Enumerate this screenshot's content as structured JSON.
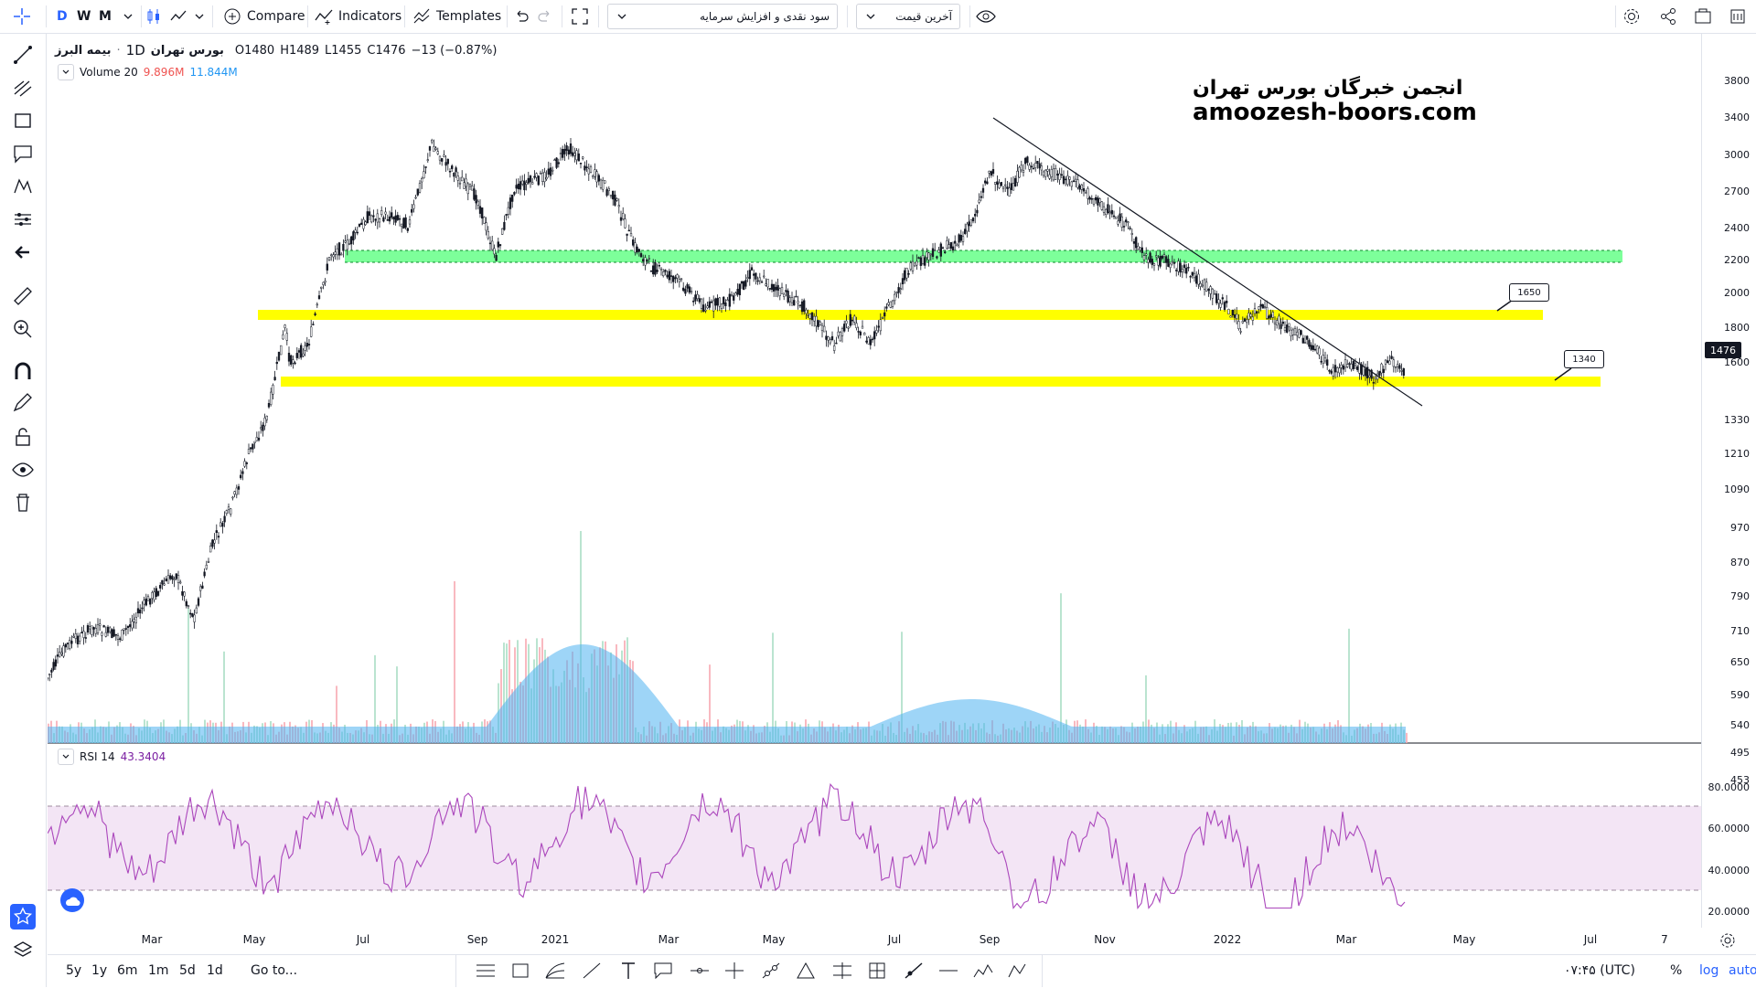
{
  "toolbar": {
    "interval_d": "D",
    "interval_w": "W",
    "interval_m": "M",
    "compare_label": "Compare",
    "indicators_label": "Indicators",
    "templates_label": "Templates",
    "dropdown_study": "سود نقدی و افزایش سرمایه",
    "dropdown_price": "آخرین قیمت"
  },
  "symbol": {
    "name": "بیمه البرز",
    "exchange": "بورس تهران",
    "interval": "1D",
    "open": "O1480",
    "high": "H1489",
    "low": "L1455",
    "close": "C1476",
    "change": "−13 (−0.87%)"
  },
  "volume_legend": {
    "label": "Volume 20",
    "value_red": "9.896M",
    "value_blue": "11.844M"
  },
  "rsi_legend": {
    "label": "RSI 14",
    "value": "43.3404"
  },
  "watermark": {
    "persian": "انجمن خبرگان بورس تهران",
    "url": "amoozesh-boors.com"
  },
  "price_axis": [
    "3800",
    "3400",
    "3000",
    "2700",
    "2400",
    "2200",
    "2000",
    "1800",
    "1600",
    "1476",
    "1330",
    "1210",
    "1090",
    "970",
    "870",
    "790",
    "710",
    "650",
    "590",
    "540",
    "495",
    "453"
  ],
  "rsi_axis": [
    "80.0000",
    "60.0000",
    "40.0000",
    "20.0000"
  ],
  "current_price": "1476",
  "time_axis": [
    "Mar",
    "May",
    "Jul",
    "Sep",
    "2021",
    "Mar",
    "May",
    "Jul",
    "Sep",
    "Nov",
    "2022",
    "Mar",
    "May",
    "Jul",
    "7"
  ],
  "callouts": {
    "upper": "1650",
    "lower": "1340"
  },
  "bottom": {
    "range_5y": "5y",
    "range_1y": "1y",
    "range_6m": "6m",
    "range_1m": "1m",
    "range_5d": "5d",
    "range_1d": "1d",
    "goto": "Go to...",
    "clock": "۰۷:۴۵ (UTC)",
    "percent": "%",
    "log": "log",
    "auto": "auto"
  },
  "colors": {
    "accent": "#2962ff",
    "support_yellow": "#ffff00",
    "resistance_green": "#66ff88",
    "rsi_line": "#9c27b0",
    "rsi_band": "#f0e1f0",
    "volume_area": "#4fb3f0",
    "log_blue": "#2962ff"
  }
}
